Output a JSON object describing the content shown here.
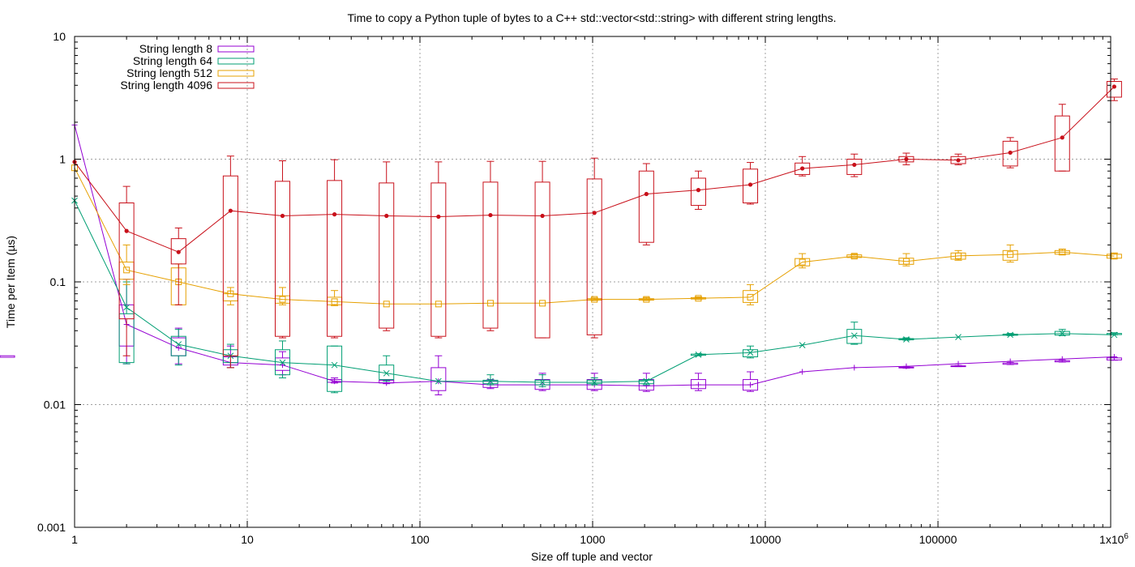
{
  "chart_data": {
    "type": "line",
    "title": "Time to copy a Python tuple of bytes to a C++ std::vector<std::string> with different string lengths.",
    "xlabel": "Size off tuple and vector",
    "ylabel": "Time per Item (µs)",
    "x_scale": "log",
    "y_scale": "log",
    "xlim": [
      1,
      1000000
    ],
    "ylim": [
      0.001,
      10
    ],
    "grid": true,
    "legend_position": "top-left",
    "x_ticks": [
      {
        "value": 1,
        "label": "1"
      },
      {
        "value": 10,
        "label": "10"
      },
      {
        "value": 100,
        "label": "100"
      },
      {
        "value": 1000,
        "label": "1000"
      },
      {
        "value": 10000,
        "label": "10000"
      },
      {
        "value": 100000,
        "label": "100000"
      },
      {
        "value": 1000000,
        "label": "1x10",
        "sup": "6"
      }
    ],
    "y_ticks": [
      {
        "value": 0.001,
        "label": "0.001"
      },
      {
        "value": 0.01,
        "label": "0.01"
      },
      {
        "value": 0.1,
        "label": "0.1"
      },
      {
        "value": 1,
        "label": "1"
      },
      {
        "value": 10,
        "label": "10"
      }
    ],
    "x": [
      1,
      2,
      4,
      8,
      16,
      32,
      64,
      128,
      256,
      512,
      1024,
      2048,
      4096,
      8192,
      16384,
      32768,
      65536,
      131072,
      262144,
      524288,
      1048576
    ],
    "series": [
      {
        "name": "String length 8",
        "color": "#9400d3",
        "marker": "plus",
        "median": [
          1.9,
          0.045,
          0.029,
          0.022,
          0.021,
          0.0155,
          0.015,
          0.0155,
          0.0145,
          0.0145,
          0.0145,
          0.0142,
          0.0145,
          0.0145,
          0.0185,
          0.02,
          0.0205,
          0.0215,
          0.0225,
          0.0235,
          0.0245
        ],
        "boxes": [
          [
            1,
            0.0215,
            0.03,
            0.065,
            0.105
          ],
          [
            2,
            0.0215,
            0.025,
            0.035,
            0.042
          ],
          [
            3,
            0.02,
            0.021,
            0.0245,
            0.03
          ],
          [
            4,
            0.0175,
            0.019,
            0.024,
            0.027
          ],
          [
            5,
            0.015,
            0.0152,
            0.016,
            0.0165
          ],
          [
            6,
            0.0148,
            0.015,
            0.0158,
            0.016
          ],
          [
            7,
            0.012,
            0.013,
            0.02,
            0.025
          ],
          [
            8,
            0.0135,
            0.0138,
            0.0155,
            0.016
          ],
          [
            9,
            0.013,
            0.0133,
            0.016,
            0.018
          ],
          [
            10,
            0.013,
            0.0133,
            0.016,
            0.018
          ],
          [
            11,
            0.0128,
            0.0131,
            0.016,
            0.018
          ],
          [
            12,
            0.013,
            0.0135,
            0.016,
            0.018
          ],
          [
            13,
            0.0128,
            0.0131,
            0.016,
            0.0185
          ],
          [
            16,
            0.0198,
            0.0199,
            0.0202,
            0.0204
          ],
          [
            17,
            0.0204,
            0.0205,
            0.0207,
            0.0208
          ],
          [
            18,
            0.0212,
            0.0213,
            0.0218,
            0.022
          ],
          [
            19,
            0.0222,
            0.0223,
            0.0228,
            0.023
          ],
          [
            20,
            0.023,
            0.0231,
            0.024,
            0.0242
          ],
          [
            21,
            0.0242,
            0.0243,
            0.025,
            0.0252
          ]
        ]
      },
      {
        "name": "String length 64",
        "color": "#009e73",
        "marker": "x",
        "median": [
          0.46,
          0.062,
          0.031,
          0.025,
          0.022,
          0.021,
          0.018,
          0.0155,
          0.0155,
          0.0152,
          0.0152,
          0.0155,
          0.0255,
          0.0265,
          0.0305,
          0.0365,
          0.034,
          0.0355,
          0.037,
          0.038,
          0.037
        ],
        "boxes": [
          [
            1,
            0.0215,
            0.022,
            0.055,
            0.1
          ],
          [
            2,
            0.021,
            0.025,
            0.036,
            0.041
          ],
          [
            3,
            0.02,
            0.022,
            0.028,
            0.031
          ],
          [
            4,
            0.0165,
            0.0175,
            0.028,
            0.033
          ],
          [
            5,
            0.0125,
            0.0128,
            0.03,
            0.03
          ],
          [
            6,
            0.0155,
            0.016,
            0.021,
            0.025
          ],
          [
            8,
            0.0145,
            0.0148,
            0.0158,
            0.0175
          ],
          [
            9,
            0.014,
            0.0145,
            0.0158,
            0.0175
          ],
          [
            10,
            0.0145,
            0.0148,
            0.0158,
            0.0165
          ],
          [
            11,
            0.0145,
            0.0148,
            0.0158,
            0.016
          ],
          [
            12,
            0.025,
            0.0252,
            0.0258,
            0.026
          ],
          [
            13,
            0.024,
            0.0245,
            0.028,
            0.03
          ],
          [
            15,
            0.031,
            0.0315,
            0.041,
            0.047
          ],
          [
            16,
            0.0335,
            0.0337,
            0.0345,
            0.035
          ],
          [
            18,
            0.0365,
            0.0367,
            0.0375,
            0.038
          ],
          [
            19,
            0.0365,
            0.0368,
            0.0395,
            0.041
          ],
          [
            20,
            0.037,
            0.0372,
            0.038,
            0.0385
          ]
        ]
      },
      {
        "name": "String length 512",
        "color": "#e6a000",
        "marker": "square",
        "median": [
          0.85,
          0.125,
          0.1,
          0.08,
          0.072,
          0.069,
          0.066,
          0.066,
          0.067,
          0.067,
          0.072,
          0.072,
          0.0735,
          0.075,
          0.145,
          0.162,
          0.147,
          0.163,
          0.167,
          0.175,
          0.162
        ],
        "boxes": [
          [
            1,
            0.095,
            0.105,
            0.145,
            0.2
          ],
          [
            2,
            0.065,
            0.065,
            0.13,
            0.14
          ],
          [
            3,
            0.065,
            0.07,
            0.08,
            0.09
          ],
          [
            4,
            0.065,
            0.067,
            0.077,
            0.09
          ],
          [
            5,
            0.064,
            0.065,
            0.075,
            0.085
          ],
          [
            10,
            0.0705,
            0.071,
            0.073,
            0.074
          ],
          [
            11,
            0.0705,
            0.071,
            0.073,
            0.0745
          ],
          [
            12,
            0.072,
            0.0725,
            0.0745,
            0.0755
          ],
          [
            13,
            0.065,
            0.068,
            0.085,
            0.095
          ],
          [
            14,
            0.13,
            0.135,
            0.155,
            0.17
          ],
          [
            15,
            0.157,
            0.158,
            0.166,
            0.168
          ],
          [
            16,
            0.135,
            0.139,
            0.156,
            0.17
          ],
          [
            17,
            0.15,
            0.153,
            0.172,
            0.18
          ],
          [
            18,
            0.145,
            0.15,
            0.18,
            0.2
          ],
          [
            19,
            0.166,
            0.168,
            0.18,
            0.185
          ],
          [
            20,
            0.155,
            0.156,
            0.168,
            0.172
          ]
        ]
      },
      {
        "name": "String length 4096",
        "color": "#c8101a",
        "marker": "dot",
        "median": [
          0.95,
          0.26,
          0.175,
          0.38,
          0.345,
          0.355,
          0.345,
          0.34,
          0.35,
          0.345,
          0.365,
          0.52,
          0.56,
          0.62,
          0.84,
          0.9,
          1.0,
          0.98,
          1.13,
          1.5,
          3.9
        ],
        "boxes": [
          [
            1,
            0.025,
            0.05,
            0.44,
            0.6
          ],
          [
            2,
            0.065,
            0.14,
            0.225,
            0.275
          ],
          [
            3,
            0.02,
            0.025,
            0.73,
            1.06
          ],
          [
            4,
            0.035,
            0.036,
            0.66,
            0.97
          ],
          [
            5,
            0.035,
            0.036,
            0.67,
            0.99
          ],
          [
            6,
            0.04,
            0.042,
            0.64,
            0.95
          ],
          [
            7,
            0.035,
            0.036,
            0.64,
            0.95
          ],
          [
            8,
            0.04,
            0.042,
            0.65,
            0.96
          ],
          [
            9,
            0.035,
            0.035,
            0.65,
            0.96
          ],
          [
            10,
            0.035,
            0.037,
            0.69,
            1.02
          ],
          [
            11,
            0.2,
            0.21,
            0.8,
            0.92
          ],
          [
            12,
            0.39,
            0.42,
            0.7,
            0.8
          ],
          [
            13,
            0.43,
            0.44,
            0.83,
            0.94
          ],
          [
            14,
            0.73,
            0.75,
            0.93,
            1.05
          ],
          [
            15,
            0.72,
            0.75,
            1.0,
            1.1
          ],
          [
            16,
            0.9,
            0.95,
            1.05,
            1.12
          ],
          [
            17,
            0.9,
            0.92,
            1.05,
            1.1
          ],
          [
            18,
            0.85,
            0.88,
            1.4,
            1.5
          ],
          [
            19,
            0.8,
            0.8,
            2.25,
            2.8
          ],
          [
            20,
            3.0,
            3.2,
            4.3,
            4.5
          ]
        ]
      }
    ]
  }
}
